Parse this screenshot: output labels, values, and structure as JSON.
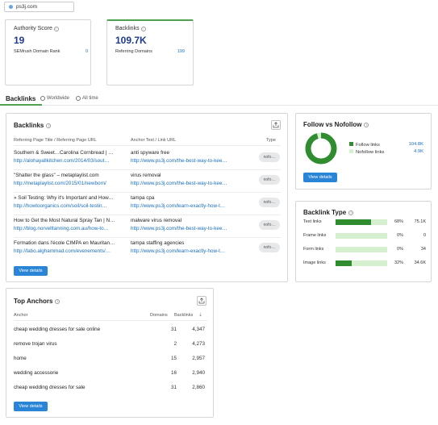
{
  "domain": "ps3j.com",
  "metrics": {
    "authority": {
      "title": "Authority Score",
      "value": "19",
      "sub_label": "SEMrush Domain Rank",
      "sub_value": "0"
    },
    "backlinks": {
      "title": "Backlinks",
      "value": "109.7K",
      "sub_label": "Referring Domains",
      "sub_value": "199"
    }
  },
  "section": {
    "title": "Backlinks",
    "opt1": "Worldwide",
    "opt2": "All time"
  },
  "backlinks_panel": {
    "title": "Backlinks",
    "col_ref": "Referring Page Title / Referring Page URL",
    "col_anchor": "Anchor Text / Link URL",
    "col_type": "Type",
    "rows": [
      {
        "title": "Southern & Sweet…Carolina Cornbread | …",
        "url": "http://alohayallkitchen.com/2014/03/sout…",
        "anchor": "anti spyware free",
        "link": "http://www.ps3j.com/the-best-way-to-kee…",
        "type": "nofo…"
      },
      {
        "title": "\"Shatter the glass\" – metaplaylist.com",
        "url": "http://metaplaylist.com/2015/01/newborn/",
        "anchor": "virus removal",
        "link": "http://www.ps3j.com/the-best-way-to-kee…",
        "type": "nofo…"
      },
      {
        "title": "» Soil Testing: Why it's Important and How…",
        "url": "http://howtoorganics.com/soil/soil-testin…",
        "anchor": "tampa cpa",
        "link": "http://www.ps3j.com/learn-exactly-how-t…",
        "type": "nofo…"
      },
      {
        "title": "How to Get the Most Natural Spray Tan | N…",
        "url": "http://blog.norvelltanning.com.au/how-to…",
        "anchor": "malware virus removal",
        "link": "http://www.ps3j.com/the-best-way-to-kee…",
        "type": "nofo…"
      },
      {
        "title": "Formation dans l'école CIMPA en Mauritan…",
        "url": "http://labo.alghammad.com/evenements/…",
        "anchor": "tampa staffing agencies",
        "link": "http://www.ps3j.com/learn-exactly-how-t…",
        "type": "nofo…"
      }
    ],
    "button": "View details"
  },
  "follow_panel": {
    "title": "Follow vs Nofollow",
    "follow_label": "Follow links",
    "follow_value": "104.8K",
    "nofollow_label": "Nofollow links",
    "nofollow_value": "4.9K",
    "follow_fraction": 0.955,
    "button": "View details"
  },
  "type_panel": {
    "title": "Backlink Type",
    "rows": [
      {
        "label": "Text links",
        "pct": "68%",
        "value": "75.1K",
        "fraction": 0.68
      },
      {
        "label": "Frame links",
        "pct": "0%",
        "value": "0",
        "fraction": 0
      },
      {
        "label": "Form links",
        "pct": "0%",
        "value": "34",
        "fraction": 0
      },
      {
        "label": "Image links",
        "pct": "32%",
        "value": "34.6K",
        "fraction": 0.32
      }
    ]
  },
  "anchors_panel": {
    "title": "Top Anchors",
    "col_anchor": "Anchor",
    "col_domains": "Domains",
    "col_backlinks": "Backlinks",
    "rows": [
      {
        "anchor": "cheap wedding dresses for sale online",
        "domains": "31",
        "backlinks": "4,347"
      },
      {
        "anchor": "remove trojan virus",
        "domains": "2",
        "backlinks": "4,273"
      },
      {
        "anchor": "home",
        "domains": "15",
        "backlinks": "2,957"
      },
      {
        "anchor": "wedding accessorie",
        "domains": "16",
        "backlinks": "2,940"
      },
      {
        "anchor": "cheap wedding dresses for sale",
        "domains": "31",
        "backlinks": "2,860"
      }
    ],
    "button": "View details"
  },
  "colors": {
    "accent_blue": "#2b85d6",
    "follow_green": "#2f8d30",
    "nofollow_green": "#d5efcf",
    "metric_blue": "#1e3a8a"
  }
}
